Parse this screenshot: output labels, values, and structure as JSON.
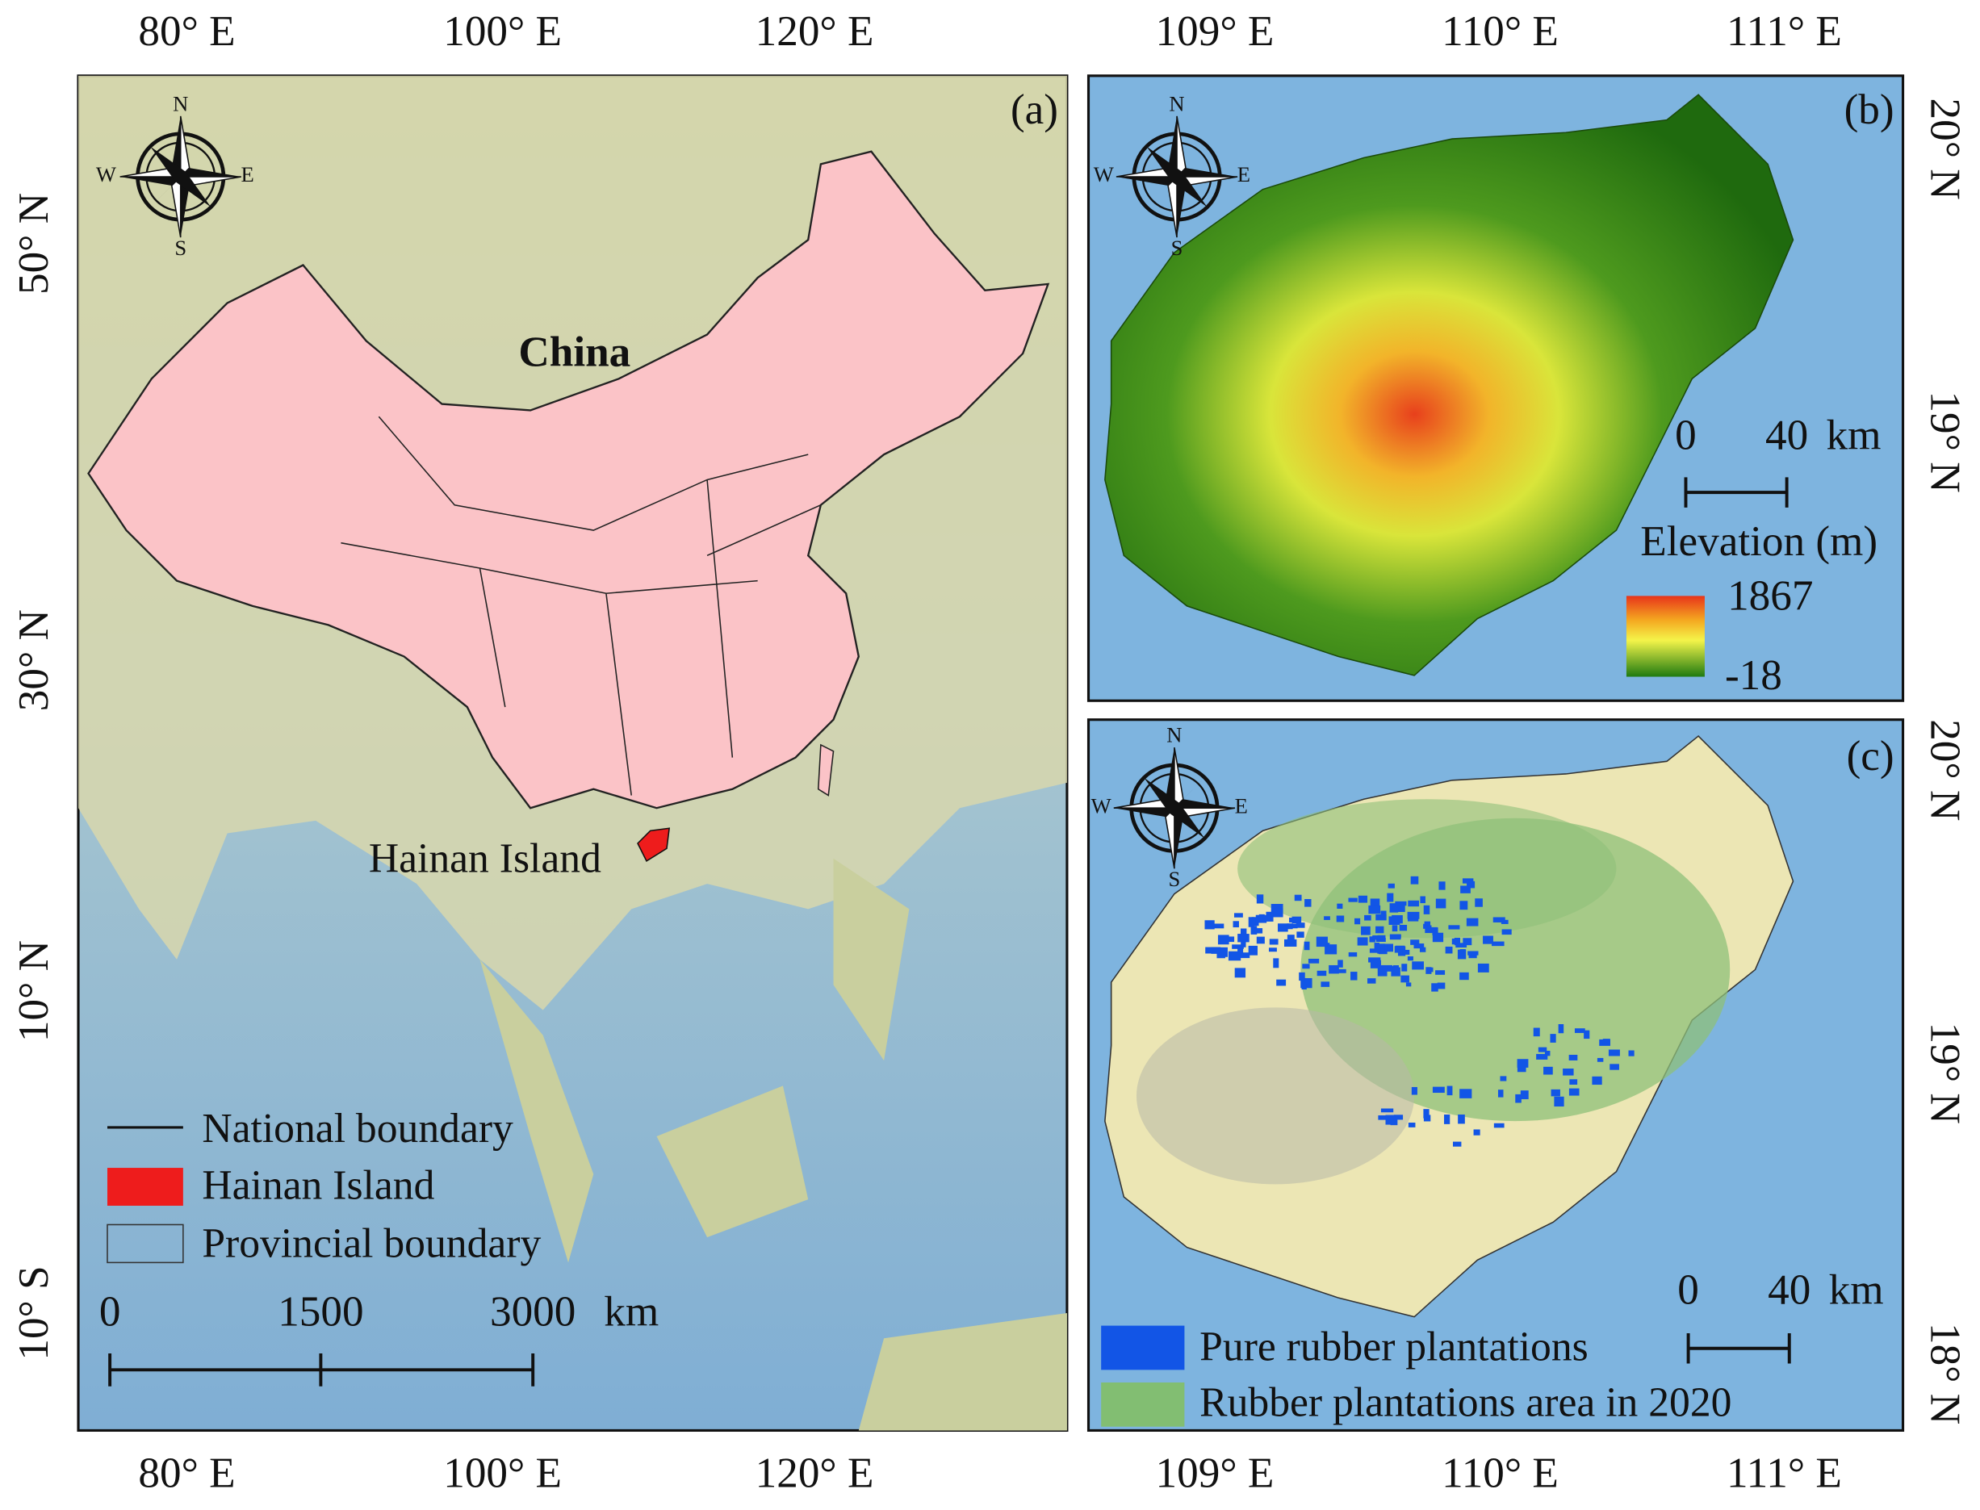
{
  "panels": [
    {
      "label": "(a)",
      "x_ticks": [
        "80° E",
        "100° E",
        "120° E"
      ],
      "y_ticks": [
        "50° N",
        "30° N",
        "10° N",
        "10° S"
      ],
      "country_label": "China",
      "place_label": "Hainan Island",
      "compass": [
        "N",
        "S",
        "W",
        "E"
      ],
      "legend": [
        "National boundary",
        "Hainan Island",
        "Provincial boundary"
      ],
      "scale_bar": {
        "ticks": [
          "0",
          "1500",
          "3000"
        ],
        "unit": "km"
      }
    },
    {
      "label": "(b)",
      "x_ticks": [
        "109° E",
        "110° E",
        "111° E"
      ],
      "y_ticks": [
        "20° N",
        "19° N"
      ],
      "compass": [
        "N",
        "S",
        "W",
        "E"
      ],
      "scale_bar": {
        "ticks": [
          "0",
          "40"
        ],
        "unit": "km"
      },
      "legend_title": "Elevation (m)",
      "legend_range": [
        "1867",
        "-18"
      ]
    },
    {
      "label": "(c)",
      "x_ticks": [
        "109° E",
        "110° E",
        "111° E"
      ],
      "y_ticks": [
        "20° N",
        "19° N",
        "18° N"
      ],
      "compass": [
        "N",
        "S",
        "W",
        "E"
      ],
      "scale_bar": {
        "ticks": [
          "0",
          "40"
        ],
        "unit": "km"
      },
      "legend": [
        "Pure rubber plantations",
        "Rubber plantations area in 2020"
      ]
    }
  ]
}
